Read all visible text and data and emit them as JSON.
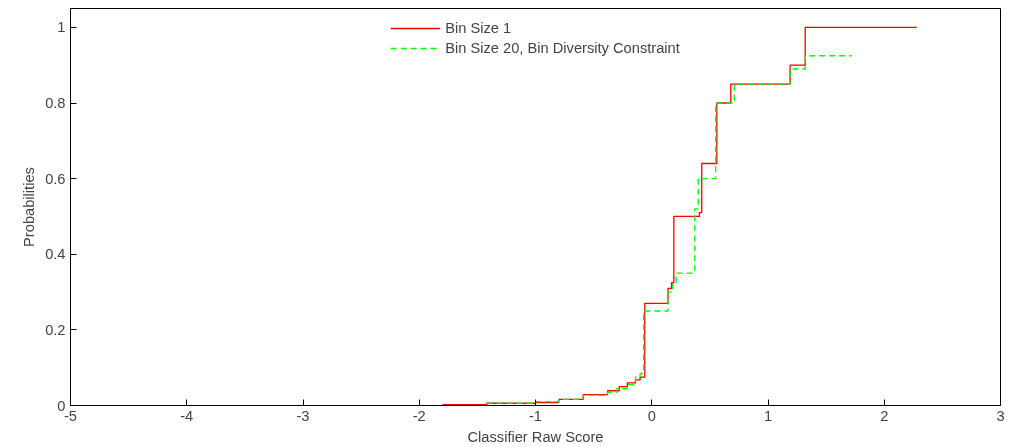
{
  "chart_data": {
    "type": "step",
    "xlabel": "Classifier Raw Score",
    "ylabel": "Probabilities",
    "xlim": [
      -5,
      3
    ],
    "ylim": [
      0,
      1.05
    ],
    "xticks": [
      -5,
      -4,
      -3,
      -2,
      -1,
      0,
      1,
      2,
      3
    ],
    "yticks": [
      0,
      0.2,
      0.4,
      0.6,
      0.8,
      1
    ],
    "grid": false,
    "legend": "top",
    "series": [
      {
        "name": "Bin Size 1",
        "color": "#ff0000",
        "line_style": "solid",
        "x": [
          -1.8,
          -1.42,
          -1.0,
          -0.8,
          -0.59,
          -0.38,
          -0.28,
          -0.21,
          -0.14,
          -0.1,
          -0.06,
          0.14,
          0.17,
          0.19,
          0.41,
          0.43,
          0.56,
          0.68,
          1.19,
          1.32,
          2.28
        ],
        "values": [
          0.002,
          0.006,
          0.008,
          0.016,
          0.029,
          0.039,
          0.05,
          0.06,
          0.068,
          0.075,
          0.27,
          0.31,
          0.325,
          0.5,
          0.51,
          0.64,
          0.8,
          0.85,
          0.9,
          1.0,
          1.0
        ]
      },
      {
        "name": "Bin Size 20, Bin Diversity Constraint",
        "color": "#00ff00",
        "line_style": "dashed",
        "x": [
          -1.42,
          -1.0,
          -0.8,
          -0.59,
          -0.38,
          -0.3,
          -0.21,
          -0.14,
          -0.1,
          -0.07,
          0.14,
          0.18,
          0.21,
          0.37,
          0.4,
          0.55,
          0.71,
          1.19,
          1.32,
          1.72
        ],
        "values": [
          0.006,
          0.01,
          0.016,
          0.027,
          0.035,
          0.045,
          0.055,
          0.075,
          0.085,
          0.25,
          0.3,
          0.325,
          0.35,
          0.52,
          0.6,
          0.8,
          0.85,
          0.89,
          0.925,
          0.925
        ]
      }
    ]
  }
}
